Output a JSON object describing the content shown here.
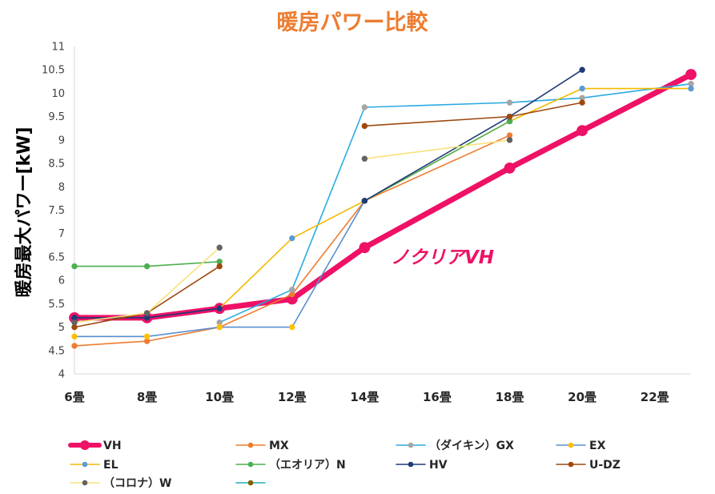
{
  "chart_data": {
    "type": "line",
    "title": "暖房パワー比較",
    "ylabel": "暖房最大パワー[kW]",
    "annotation": "ノクリアVH",
    "x": [
      6,
      8,
      10,
      12,
      14,
      18,
      20,
      23
    ],
    "xlim": [
      6,
      23
    ],
    "ylim": [
      4,
      11
    ],
    "x_ticks": [
      6,
      8,
      10,
      12,
      14,
      16,
      18,
      20,
      22
    ],
    "x_tick_labels": [
      "6畳",
      "8畳",
      "10畳",
      "12畳",
      "14畳",
      "16畳",
      "18畳",
      "20畳",
      "22畳"
    ],
    "y_ticks": [
      4,
      4.5,
      5,
      5.5,
      6,
      6.5,
      7,
      7.5,
      8,
      8.5,
      9,
      9.5,
      10,
      10.5,
      11
    ],
    "y_tick_labels": [
      "4",
      "4.5",
      "5",
      "5.5",
      "6",
      "6.5",
      "7",
      "7.5",
      "8",
      "8.5",
      "9",
      "9.5",
      "10",
      "10.5",
      "11"
    ],
    "grid": false,
    "legend": "bottom",
    "series": [
      {
        "name": "VH",
        "values": [
          5.2,
          5.2,
          5.4,
          5.6,
          6.7,
          8.4,
          9.2,
          10.4
        ],
        "line_color": "#ee1166",
        "marker_color": "#ee1166"
      },
      {
        "name": "MX",
        "values": [
          4.6,
          4.7,
          5.0,
          5.7,
          7.7,
          9.1,
          null,
          null
        ],
        "line_color": "#ed7d31",
        "marker_color": "#ed7d31"
      },
      {
        "name": "（ダイキン）GX",
        "values": [
          null,
          null,
          5.1,
          5.8,
          9.7,
          9.8,
          9.9,
          10.2
        ],
        "line_color": "#29abe2",
        "marker_color": "#a5a5a5"
      },
      {
        "name": "EX",
        "values": [
          4.8,
          4.8,
          5.0,
          5.0,
          7.7,
          null,
          null,
          null
        ],
        "line_color": "#5a8fd0",
        "marker_color": "#ffc000"
      },
      {
        "name": "EL",
        "values": [
          null,
          null,
          5.4,
          6.9,
          7.7,
          9.4,
          10.1,
          10.1
        ],
        "line_color": "#f5b800",
        "marker_color": "#5b9bd5"
      },
      {
        "name": "（エオリア）N",
        "values": [
          6.3,
          6.3,
          6.4,
          null,
          7.7,
          9.4,
          null,
          null
        ],
        "line_color": "#4caf50",
        "marker_color": "#4caf50"
      },
      {
        "name": "HV",
        "values": [
          5.2,
          5.2,
          5.4,
          null,
          7.7,
          9.5,
          10.5,
          null
        ],
        "line_color": "#1f3a78",
        "marker_color": "#1f3a78"
      },
      {
        "name": "U-DZ",
        "values": [
          5.0,
          5.3,
          6.3,
          null,
          9.3,
          9.5,
          9.8,
          null
        ],
        "line_color": "#9e480e",
        "marker_color": "#9e480e"
      },
      {
        "name": "（コロナ）W",
        "values": [
          5.1,
          5.3,
          6.7,
          null,
          8.6,
          9.0,
          null,
          null
        ],
        "line_color": "#f7e27a",
        "marker_color": "#636363"
      },
      {
        "name": "",
        "values": [
          null,
          null,
          null,
          null,
          null,
          null,
          null,
          null
        ],
        "line_color": "#1fb0b8",
        "marker_color": "#806000"
      }
    ]
  },
  "colors": {
    "title": "#ed7d31",
    "annotation": "#ee1166",
    "axis": "#d9d9d9"
  }
}
